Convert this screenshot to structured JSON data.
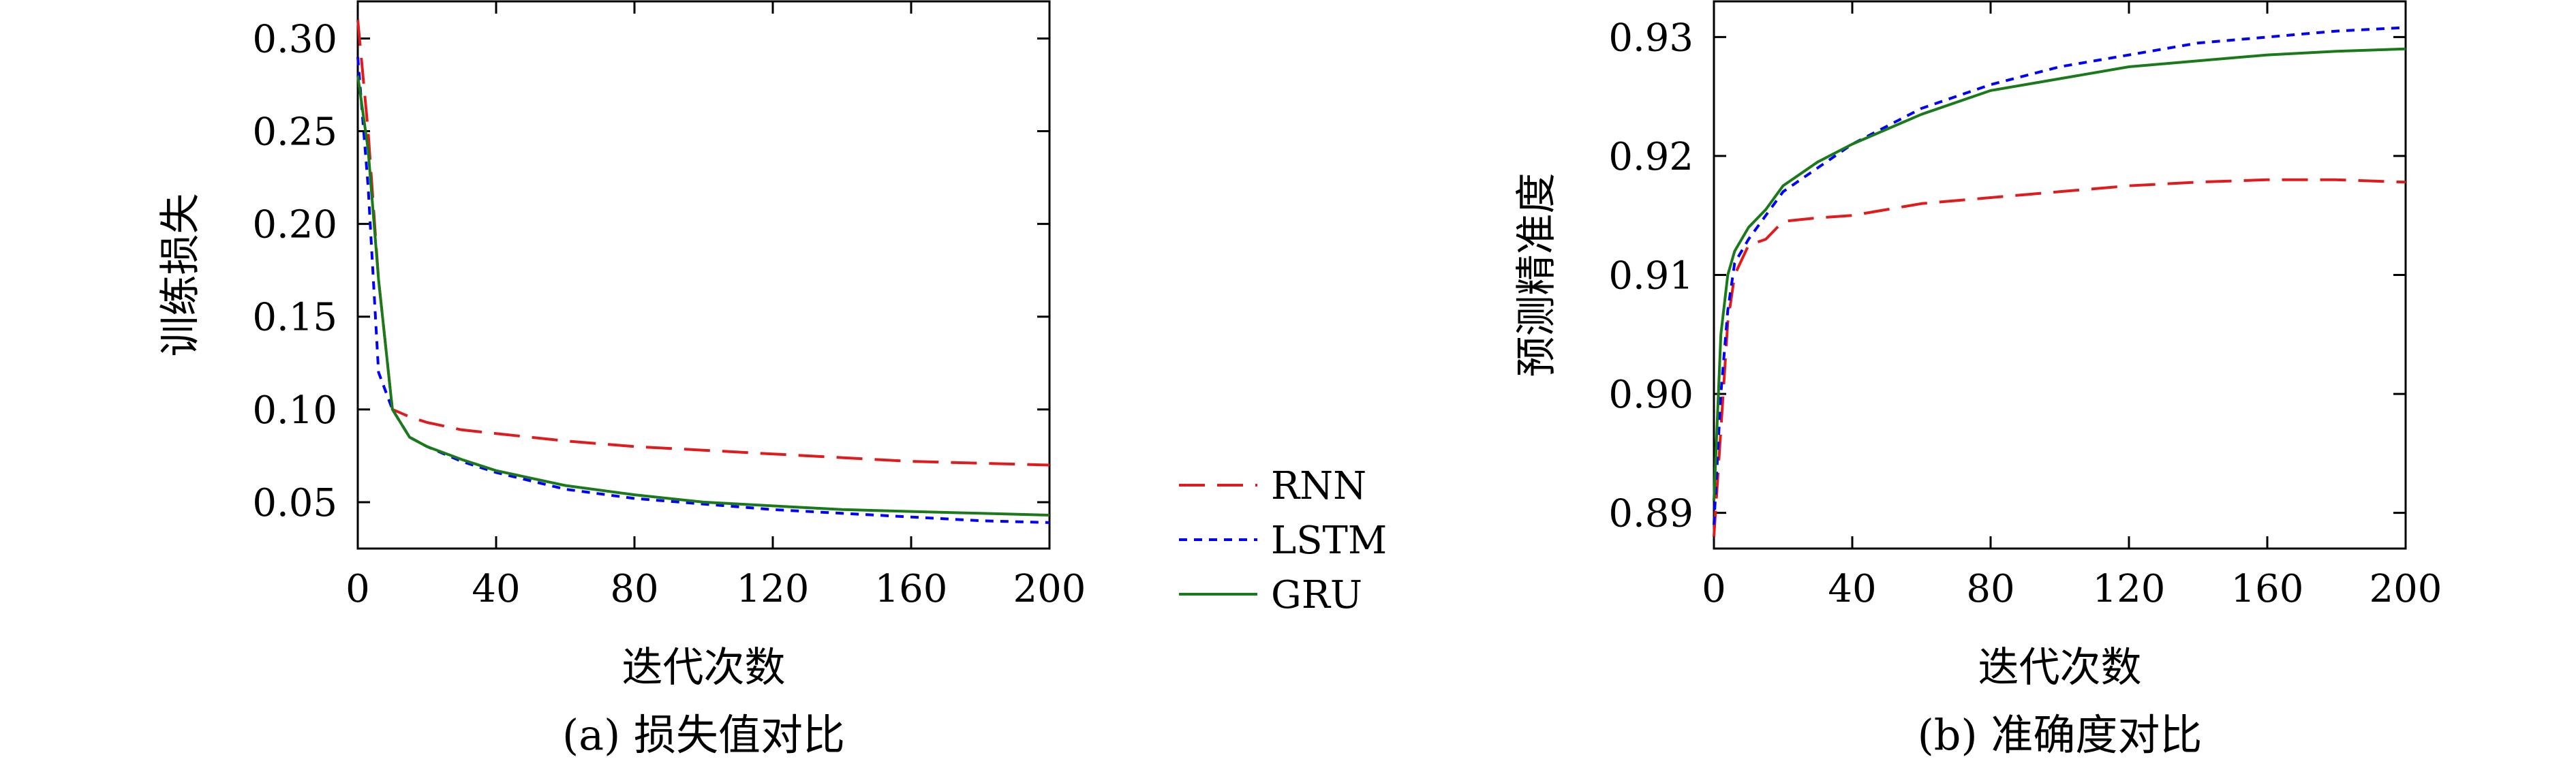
{
  "colors": {
    "RNN": "#e31a1c",
    "LSTM": "#0000ff",
    "GRU": "#1a7a1a"
  },
  "legend": {
    "items": [
      "RNN",
      "LSTM",
      "GRU"
    ]
  },
  "chart_data": [
    {
      "type": "line",
      "caption": "(a) 损失值对比",
      "xlabel": "迭代次数",
      "ylabel": "训练损失",
      "xlim": [
        0,
        200
      ],
      "ylim": [
        0.025,
        0.32
      ],
      "xticks": [
        "0",
        "40",
        "80",
        "120",
        "160",
        "200"
      ],
      "yticks": [
        "0.05",
        "0.10",
        "0.15",
        "0.20",
        "0.25",
        "0.30"
      ],
      "grid": false,
      "series": [
        {
          "name": "RNN",
          "style": "dashed",
          "x": [
            0,
            3,
            6,
            10,
            15,
            20,
            30,
            40,
            60,
            80,
            100,
            120,
            140,
            160,
            180,
            200
          ],
          "y": [
            0.31,
            0.25,
            0.17,
            0.1,
            0.096,
            0.093,
            0.089,
            0.087,
            0.083,
            0.08,
            0.078,
            0.076,
            0.074,
            0.072,
            0.071,
            0.07
          ]
        },
        {
          "name": "LSTM",
          "style": "dotted",
          "x": [
            0,
            3,
            6,
            10,
            15,
            20,
            30,
            40,
            60,
            80,
            100,
            120,
            140,
            160,
            180,
            200
          ],
          "y": [
            0.29,
            0.22,
            0.12,
            0.1,
            0.085,
            0.08,
            0.072,
            0.066,
            0.057,
            0.052,
            0.049,
            0.046,
            0.044,
            0.042,
            0.04,
            0.039
          ]
        },
        {
          "name": "GRU",
          "style": "solid",
          "x": [
            0,
            3,
            6,
            10,
            15,
            20,
            30,
            40,
            60,
            80,
            100,
            120,
            140,
            160,
            180,
            200
          ],
          "y": [
            0.28,
            0.24,
            0.17,
            0.1,
            0.085,
            0.08,
            0.073,
            0.067,
            0.059,
            0.054,
            0.05,
            0.048,
            0.046,
            0.045,
            0.044,
            0.043
          ]
        }
      ]
    },
    {
      "type": "line",
      "caption": "(b) 准确度对比",
      "xlabel": "迭代次数",
      "ylabel": "预测精准度",
      "xlim": [
        0,
        200
      ],
      "ylim": [
        0.887,
        0.933
      ],
      "xticks": [
        "0",
        "40",
        "80",
        "120",
        "160",
        "200"
      ],
      "yticks": [
        "0.89",
        "0.90",
        "0.91",
        "0.92",
        "0.93"
      ],
      "grid": false,
      "series": [
        {
          "name": "RNN",
          "style": "dashed",
          "x": [
            0,
            2,
            4,
            6,
            10,
            15,
            20,
            30,
            40,
            60,
            80,
            100,
            120,
            140,
            160,
            180,
            200
          ],
          "y": [
            0.888,
            0.897,
            0.906,
            0.91,
            0.9125,
            0.913,
            0.9145,
            0.9148,
            0.915,
            0.916,
            0.9165,
            0.917,
            0.9175,
            0.9178,
            0.918,
            0.918,
            0.9178
          ]
        },
        {
          "name": "LSTM",
          "style": "dotted",
          "x": [
            0,
            2,
            4,
            6,
            10,
            15,
            20,
            30,
            40,
            60,
            80,
            100,
            120,
            140,
            160,
            180,
            200
          ],
          "y": [
            0.889,
            0.9,
            0.907,
            0.911,
            0.913,
            0.915,
            0.917,
            0.919,
            0.921,
            0.924,
            0.926,
            0.9275,
            0.9285,
            0.9295,
            0.93,
            0.9305,
            0.9308
          ]
        },
        {
          "name": "GRU",
          "style": "solid",
          "x": [
            0,
            2,
            4,
            6,
            10,
            15,
            20,
            30,
            40,
            60,
            80,
            100,
            120,
            140,
            160,
            180,
            200
          ],
          "y": [
            0.891,
            0.905,
            0.91,
            0.912,
            0.914,
            0.9155,
            0.9175,
            0.9195,
            0.921,
            0.9235,
            0.9255,
            0.9265,
            0.9275,
            0.928,
            0.9285,
            0.9288,
            0.929
          ]
        }
      ]
    }
  ]
}
